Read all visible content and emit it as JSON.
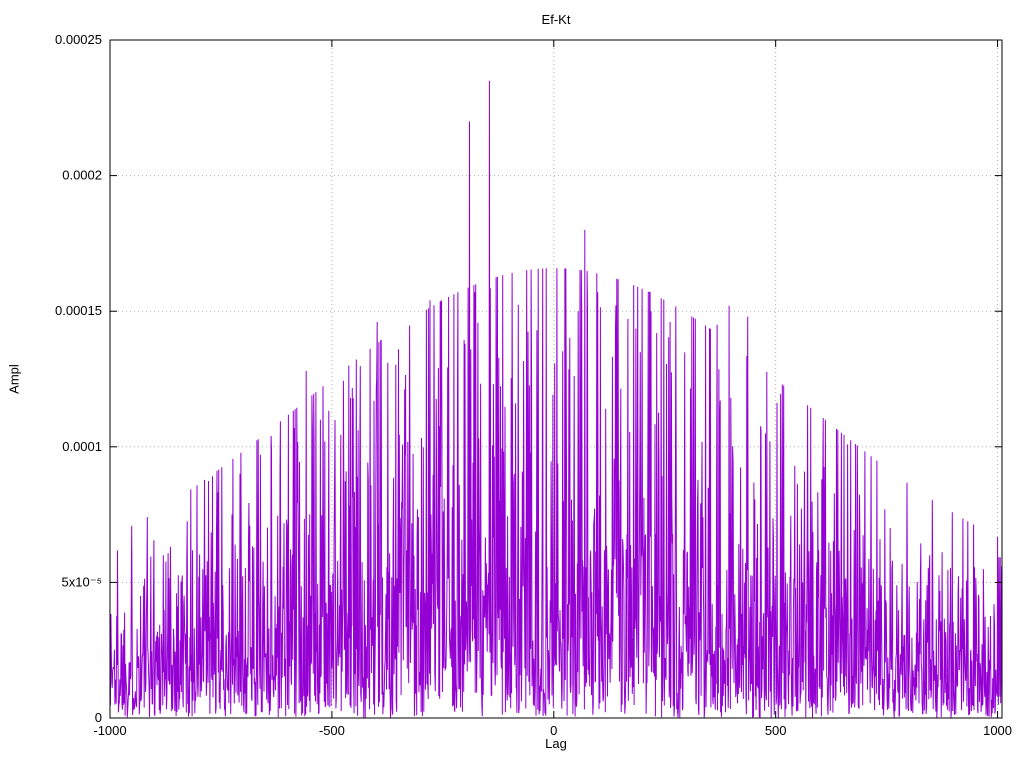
{
  "page": {
    "background_color": "#ffffff"
  },
  "chart_data": {
    "type": "line",
    "title": "Ef-Kt",
    "xlabel": "Lag",
    "ylabel": "Ampl",
    "xlim": [
      -1000,
      1010
    ],
    "ylim": [
      0,
      0.00025
    ],
    "grid": true,
    "legend": "none",
    "line_color": "#9400D3",
    "grid_color": "#b0b0b0",
    "border_color": "#000000",
    "xticks": {
      "values": [
        -1000,
        -500,
        0,
        500,
        1000
      ],
      "labels": [
        "-1000",
        "-500",
        "0",
        "500",
        "1000"
      ]
    },
    "yticks": {
      "values": [
        0,
        5e-05,
        0.0001,
        0.00015,
        0.0002,
        0.00025
      ],
      "labels": [
        "0",
        "5x10⁻⁵",
        "0.0001",
        "0.00015",
        "0.0002",
        "0.00025"
      ]
    },
    "series_name": "Ef-Kt",
    "description": "Dense noisy cross-correlation amplitude vs lag; spiky envelope peaking near lag 0 (~0.0001 typical, spikes to 0.000235) tapering to ~0.00002-0.00005 at the edges",
    "generator": {
      "kind": "seeded-exponential-noise",
      "seed": 1337,
      "x_start": -1000,
      "x_end": 1010,
      "x_step": 1,
      "envelope_base": 2.6e-05,
      "envelope_peak": 7.8e-05,
      "envelope_sigma": 560,
      "amp_scale": 0.55,
      "amp_cap": 2.9
    },
    "peaks": [
      {
        "x": -880,
        "y": 6e-05
      },
      {
        "x": -707,
        "y": 9e-05
      },
      {
        "x": -558,
        "y": 0.000128
      },
      {
        "x": -516,
        "y": 0.000102
      },
      {
        "x": -398,
        "y": 0.000146
      },
      {
        "x": -374,
        "y": 0.000131
      },
      {
        "x": -279,
        "y": 0.000154
      },
      {
        "x": -190,
        "y": 0.00022
      },
      {
        "x": -178,
        "y": 0.000157
      },
      {
        "x": -145,
        "y": 0.000235
      },
      {
        "x": -38,
        "y": 0.000143
      },
      {
        "x": 70,
        "y": 0.00018
      },
      {
        "x": 99,
        "y": 0.000157
      },
      {
        "x": 219,
        "y": 0.00015
      },
      {
        "x": 262,
        "y": 0.000146
      },
      {
        "x": 368,
        "y": 0.000145
      },
      {
        "x": 395,
        "y": 0.000152
      },
      {
        "x": 437,
        "y": 0.000148
      },
      {
        "x": 487,
        "y": 0.000102
      },
      {
        "x": 543,
        "y": 9.3e-05
      },
      {
        "x": 604,
        "y": 8.8e-05
      },
      {
        "x": 746,
        "y": 7.7e-05
      },
      {
        "x": 847,
        "y": 6e-05
      }
    ]
  }
}
